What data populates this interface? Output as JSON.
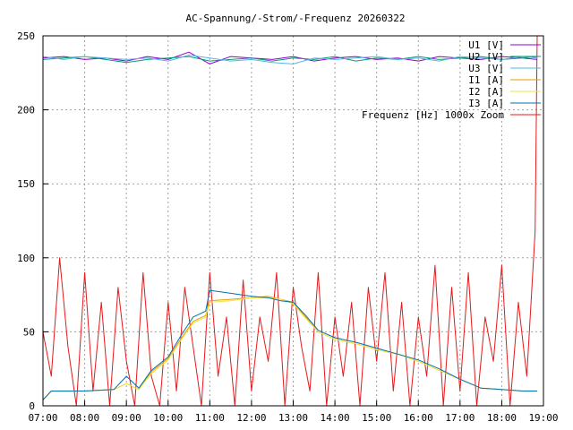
{
  "chart_data": {
    "type": "line",
    "title": "AC-Spannung/-Strom/-Frequenz 20260322",
    "xlabel": "",
    "ylabel": "",
    "x_range_hours": [
      7.0,
      19.0
    ],
    "ylim": [
      0,
      250
    ],
    "grid": true,
    "legend_position": "top-right",
    "x_ticks": [
      "07:00",
      "08:00",
      "09:00",
      "10:00",
      "11:00",
      "12:00",
      "13:00",
      "14:00",
      "15:00",
      "16:00",
      "17:00",
      "18:00",
      "19:00"
    ],
    "y_ticks": [
      "0",
      "50",
      "100",
      "150",
      "200",
      "250"
    ],
    "series": [
      {
        "name": "U1 [V]",
        "color": "#9400d3",
        "x": [
          7.0,
          7.5,
          8.0,
          8.5,
          9.0,
          9.5,
          10.0,
          10.5,
          11.0,
          11.5,
          12.0,
          12.5,
          13.0,
          13.5,
          14.0,
          14.5,
          15.0,
          15.5,
          16.0,
          16.5,
          17.0,
          17.5,
          18.0,
          18.5,
          18.85
        ],
        "values": [
          235,
          236,
          234,
          235,
          233,
          236,
          234,
          239,
          231,
          236,
          235,
          234,
          236,
          233,
          235,
          236,
          234,
          235,
          233,
          236,
          235,
          234,
          236,
          235,
          234
        ]
      },
      {
        "name": "U2 [V]",
        "color": "#009e73",
        "x": [
          7.0,
          7.5,
          8.0,
          8.5,
          9.0,
          9.5,
          10.0,
          10.5,
          11.0,
          11.5,
          12.0,
          12.5,
          13.0,
          13.5,
          14.0,
          14.5,
          15.0,
          15.5,
          16.0,
          16.5,
          17.0,
          17.5,
          18.0,
          18.5,
          18.85
        ],
        "values": [
          234,
          235,
          236,
          234,
          232,
          234,
          235,
          236,
          233,
          234,
          235,
          233,
          235,
          234,
          236,
          233,
          235,
          234,
          236,
          234,
          235,
          236,
          234,
          235,
          236
        ]
      },
      {
        "name": "U3 [V]",
        "color": "#56b4e9",
        "x": [
          7.0,
          7.5,
          8.0,
          8.5,
          9.0,
          9.5,
          10.0,
          10.5,
          11.0,
          11.5,
          12.0,
          12.5,
          13.0,
          13.5,
          14.0,
          14.5,
          15.0,
          15.5,
          16.0,
          16.5,
          17.0,
          17.5,
          18.0,
          18.5,
          18.85
        ],
        "values": [
          236,
          234,
          236,
          235,
          234,
          235,
          233,
          237,
          235,
          233,
          234,
          232,
          231,
          235,
          234,
          235,
          236,
          234,
          235,
          233,
          236,
          235,
          234,
          236,
          235
        ]
      },
      {
        "name": "I1 [A]",
        "color": "#e69f00",
        "x": [
          7.0,
          7.2,
          8.0,
          8.7,
          9.0,
          9.3,
          9.6,
          10.0,
          10.3,
          10.6,
          10.9,
          11.0,
          11.5,
          12.0,
          12.4,
          12.7,
          13.0,
          13.3,
          13.6,
          14.0,
          14.5,
          15.0,
          15.5,
          16.0,
          16.5,
          17.0,
          17.5,
          18.0,
          18.5,
          18.85
        ],
        "values": [
          4,
          10,
          10,
          11,
          15,
          11,
          23,
          32,
          45,
          57,
          61,
          71,
          72,
          73,
          74,
          72,
          70,
          60,
          50,
          45,
          42,
          38,
          35,
          30,
          24,
          18,
          12,
          11,
          10,
          10
        ]
      },
      {
        "name": "I2 [A]",
        "color": "#f0e442",
        "x": [
          7.0,
          7.2,
          8.0,
          8.7,
          9.0,
          9.3,
          9.6,
          10.0,
          10.3,
          10.6,
          10.9,
          11.0,
          11.5,
          12.0,
          12.4,
          12.7,
          13.0,
          13.3,
          13.6,
          14.0,
          14.5,
          15.0,
          15.5,
          16.0,
          16.5,
          17.0,
          17.5,
          18.0,
          18.5,
          18.85
        ],
        "values": [
          4,
          10,
          10,
          11,
          15,
          11,
          22,
          31,
          44,
          56,
          60,
          70,
          71,
          73,
          73,
          72,
          69,
          59,
          50,
          45,
          42,
          38,
          35,
          30,
          24,
          18,
          12,
          11,
          10,
          10
        ]
      },
      {
        "name": "I3 [A]",
        "color": "#0072b2",
        "x": [
          7.0,
          7.2,
          8.0,
          8.7,
          9.0,
          9.3,
          9.6,
          10.0,
          10.3,
          10.6,
          10.9,
          11.0,
          11.5,
          12.0,
          12.4,
          12.7,
          13.0,
          13.3,
          13.6,
          14.0,
          14.5,
          15.0,
          15.5,
          16.0,
          16.5,
          17.0,
          17.5,
          18.0,
          18.5,
          18.85
        ],
        "values": [
          4,
          10,
          10,
          11,
          20,
          12,
          24,
          33,
          47,
          60,
          64,
          78,
          76,
          74,
          73,
          71,
          70,
          61,
          51,
          46,
          43,
          39,
          35,
          31,
          25,
          18,
          12,
          11,
          10,
          10
        ]
      },
      {
        "name": "Frequenz [Hz] 1000x Zoom",
        "color": "#e41a1c",
        "x": [
          7.0,
          7.2,
          7.4,
          7.6,
          7.8,
          8.0,
          8.2,
          8.4,
          8.6,
          8.8,
          9.0,
          9.2,
          9.4,
          9.6,
          9.8,
          10.0,
          10.2,
          10.4,
          10.6,
          10.8,
          11.0,
          11.2,
          11.4,
          11.6,
          11.8,
          12.0,
          12.2,
          12.4,
          12.6,
          12.8,
          13.0,
          13.2,
          13.4,
          13.6,
          13.8,
          14.0,
          14.2,
          14.4,
          14.6,
          14.8,
          15.0,
          15.2,
          15.4,
          15.6,
          15.8,
          16.0,
          16.2,
          16.4,
          16.6,
          16.8,
          17.0,
          17.2,
          17.4,
          17.6,
          17.8,
          18.0,
          18.2,
          18.4,
          18.6,
          18.8,
          18.85
        ],
        "values": [
          50,
          20,
          100,
          40,
          0,
          90,
          10,
          70,
          0,
          80,
          30,
          0,
          90,
          20,
          0,
          70,
          10,
          80,
          40,
          0,
          90,
          20,
          60,
          0,
          85,
          10,
          60,
          30,
          90,
          0,
          80,
          40,
          10,
          90,
          0,
          60,
          20,
          70,
          0,
          80,
          30,
          90,
          10,
          70,
          0,
          60,
          20,
          95,
          0,
          80,
          10,
          90,
          0,
          60,
          30,
          95,
          0,
          70,
          20,
          118,
          250
        ]
      }
    ]
  }
}
